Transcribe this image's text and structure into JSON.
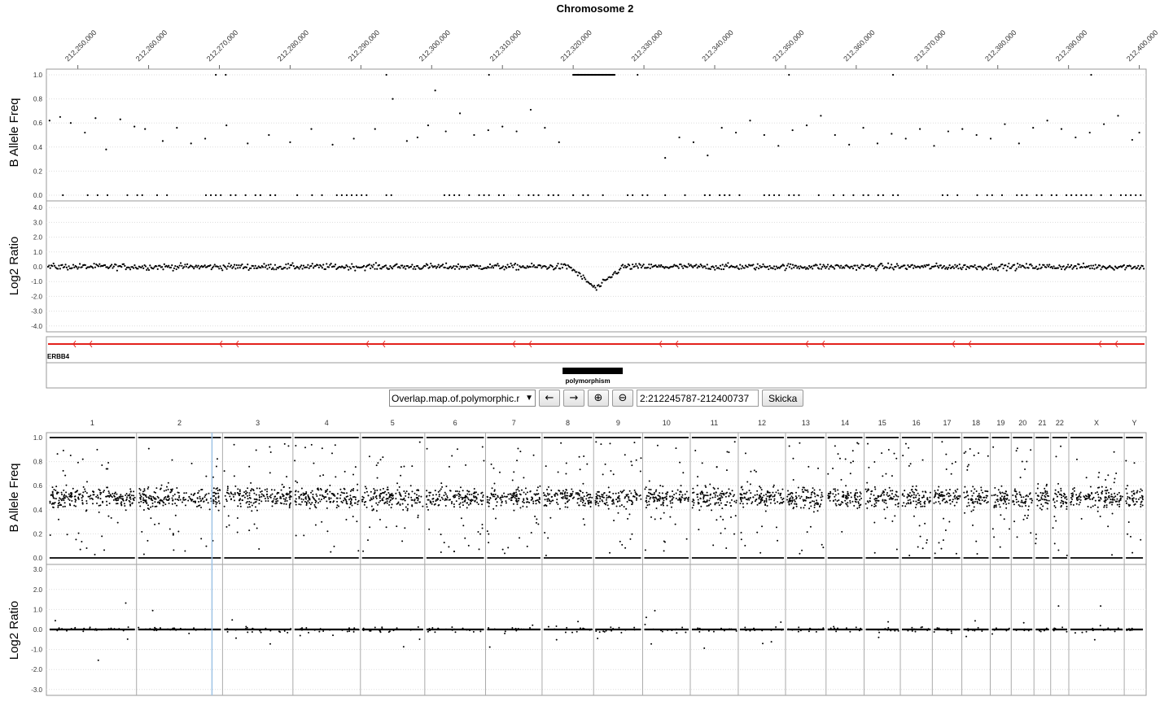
{
  "chart_data": [
    {
      "type": "scatter",
      "title": "Chromosome 2",
      "panel": "zoomed-region",
      "x_ticks": [
        "212,250,000",
        "212,260,000",
        "212,270,000",
        "212,280,000",
        "212,290,000",
        "212,300,000",
        "212,310,000",
        "212,320,000",
        "212,330,000",
        "212,340,000",
        "212,350,000",
        "212,360,000",
        "212,370,000",
        "212,380,000",
        "212,390,000",
        "212,400,000"
      ],
      "x_tick_values": [
        212250000,
        212260000,
        212270000,
        212280000,
        212290000,
        212300000,
        212310000,
        212320000,
        212330000,
        212340000,
        212350000,
        212360000,
        212370000,
        212380000,
        212390000,
        212400000
      ],
      "xlim": [
        212245787,
        212400737
      ],
      "series": [
        {
          "name": "B Allele Freq",
          "ylabel": "B Allele Freq",
          "ylim": [
            0,
            1
          ],
          "y_ticks": [
            "0.0",
            "0.2",
            "0.4",
            "0.6",
            "0.8",
            "1.0"
          ],
          "y_tick_values": [
            0,
            0.2,
            0.4,
            0.6,
            0.8,
            1.0
          ],
          "x": [
            212246000,
            212247500,
            212249000,
            212251000,
            212252500,
            212254000,
            212256000,
            212258000,
            212259500,
            212262000,
            212264000,
            212266000,
            212268000,
            212271000,
            212274000,
            212277000,
            212280000,
            212283000,
            212286000,
            212289000,
            212292000,
            212294500,
            212296500,
            212298000,
            212299500,
            212300500,
            212302000,
            212304000,
            212306000,
            212308000,
            212310000,
            212312000,
            212314000,
            212316000,
            212318000,
            212333000,
            212335000,
            212337000,
            212339000,
            212341000,
            212343000,
            212345000,
            212347000,
            212349000,
            212351000,
            212353000,
            212355000,
            212357000,
            212359000,
            212361000,
            212363000,
            212365000,
            212367000,
            212369000,
            212371000,
            212373000,
            212375000,
            212377000,
            212379000,
            212381000,
            212383000,
            212385000,
            212387000,
            212389000,
            212391000,
            212393000,
            212395000,
            212397000,
            212399000,
            212400000
          ],
          "values": [
            0.62,
            0.65,
            0.6,
            0.52,
            0.64,
            0.38,
            0.63,
            0.57,
            0.55,
            0.45,
            0.56,
            0.43,
            0.47,
            0.58,
            0.43,
            0.5,
            0.44,
            0.55,
            0.42,
            0.47,
            0.55,
            0.8,
            0.45,
            0.48,
            0.58,
            0.87,
            0.53,
            0.68,
            0.5,
            0.54,
            0.57,
            0.53,
            0.71,
            0.56,
            0.44,
            0.31,
            0.48,
            0.44,
            0.33,
            0.56,
            0.52,
            0.62,
            0.5,
            0.41,
            0.54,
            0.58,
            0.66,
            0.5,
            0.42,
            0.56,
            0.43,
            0.51,
            0.47,
            0.55,
            0.41,
            0.53,
            0.55,
            0.5,
            0.47,
            0.59,
            0.43,
            0.56,
            0.62,
            0.55,
            0.48,
            0.52,
            0.59,
            0.66,
            0.46,
            0.52
          ],
          "homozygous_x_ranges": [
            [
              212245787,
              212255000
            ],
            [
              212257000,
              212264000
            ],
            [
              212266000,
              212279000
            ],
            [
              212281000,
              212296000
            ],
            [
              212299000,
              212331000
            ],
            [
              212333000,
              212400737
            ]
          ],
          "homozygous_high_x_range": [
            212320000,
            212326000
          ]
        },
        {
          "name": "Log2 Ratio",
          "ylabel": "Log2 Ratio",
          "ylim": [
            -4.2,
            4.2
          ],
          "y_ticks": [
            "4.0",
            "3.0",
            "2.0",
            "1.0",
            "0.0",
            "-1.0",
            "-2.0",
            "-3.0",
            "-4.0"
          ],
          "y_tick_values": [
            4,
            3,
            2,
            1,
            0,
            -1,
            -2,
            -3,
            -4
          ],
          "baseline": 0.0,
          "deletion_x_range": [
            212319500,
            212327000
          ],
          "deletion_min": -1.5
        }
      ],
      "annotations": {
        "gene": {
          "name": "ERBB4",
          "x_range": [
            212245787,
            212400737
          ],
          "strand": "-",
          "color": "#e3211c"
        },
        "feature": {
          "name": "polymorphism",
          "x_range": [
            212318500,
            212327000
          ]
        }
      }
    },
    {
      "type": "scatter",
      "panel": "genome-overview",
      "categories": [
        "1",
        "2",
        "3",
        "4",
        "5",
        "6",
        "7",
        "8",
        "9",
        "10",
        "11",
        "12",
        "13",
        "14",
        "15",
        "16",
        "17",
        "18",
        "19",
        "20",
        "21",
        "22",
        "X",
        "Y"
      ],
      "chromosome_sizes_mb": [
        249,
        242,
        198,
        190,
        181,
        171,
        159,
        145,
        138,
        134,
        135,
        133,
        114,
        107,
        102,
        90,
        83,
        80,
        59,
        64,
        47,
        51,
        156,
        57
      ],
      "series": [
        {
          "name": "B Allele Freq",
          "ylabel": "B Allele Freq",
          "ylim": [
            0,
            1
          ],
          "y_ticks": [
            "0.0",
            "0.2",
            "0.4",
            "0.6",
            "0.8",
            "1.0"
          ],
          "y_tick_values": [
            0,
            0.2,
            0.4,
            0.6,
            0.8,
            1.0
          ],
          "heterozygous_center": 0.5
        },
        {
          "name": "Log2 Ratio",
          "ylabel": "Log2 Ratio",
          "ylim": [
            -3.2,
            3.2
          ],
          "y_ticks": [
            "3.0",
            "2.0",
            "1.0",
            "0.0",
            "-1.0",
            "-2.0",
            "-3.0"
          ],
          "y_tick_values": [
            3,
            2,
            1,
            0,
            -1,
            -2,
            -3
          ],
          "baseline": 0.0
        }
      ],
      "selected_chromosome": "2",
      "selection_position_mb": 212.3
    }
  ],
  "controls": {
    "track_select_value": "Overlap.map.of.polymorphic.r",
    "track_select_arrow": "▼",
    "back_icon_glyph": "←",
    "forward_icon_glyph": "→",
    "zoom_in_icon_glyph": "⊕",
    "zoom_out_icon_glyph": "⊖",
    "region_value": "2:212245787-212400737",
    "go_label": "Skicka"
  },
  "colors": {
    "points": "#000000",
    "gene": "#e3211c",
    "grid": "#dddddd",
    "selection": "#9ec3e6"
  }
}
